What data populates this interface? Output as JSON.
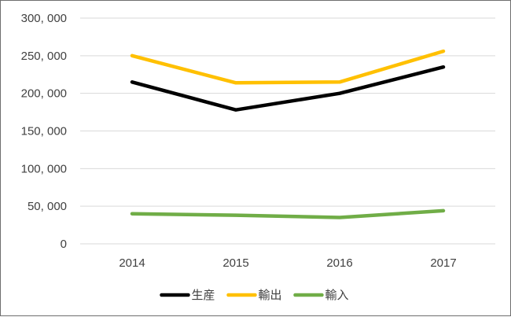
{
  "chart_data": {
    "type": "line",
    "title": "",
    "xlabel": "",
    "ylabel": "",
    "categories": [
      "2014",
      "2015",
      "2016",
      "2017"
    ],
    "ylim": [
      0,
      300000
    ],
    "yticks": [
      0,
      50000,
      100000,
      150000,
      200000,
      250000,
      300000
    ],
    "ytick_labels": [
      "0",
      "50, 000",
      "100, 000",
      "150, 000",
      "200, 000",
      "250, 000",
      "300, 000"
    ],
    "grid": true,
    "legend_position": "bottom",
    "series": [
      {
        "name": "生産",
        "color": "#000000",
        "values": [
          215000,
          178000,
          200000,
          235000
        ]
      },
      {
        "name": "輸出",
        "color": "#ffc000",
        "values": [
          250000,
          214000,
          215000,
          256000
        ]
      },
      {
        "name": "輸入",
        "color": "#70ad47",
        "values": [
          40000,
          38000,
          35000,
          44000
        ]
      }
    ]
  }
}
